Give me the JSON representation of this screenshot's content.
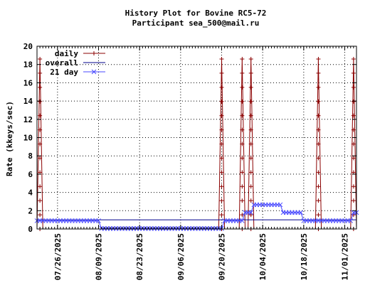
{
  "chart_data": {
    "type": "line",
    "title": "History Plot for Bovine RC5-72",
    "subtitle": "Participant sea_500@mail.ru",
    "xlabel": "",
    "ylabel": "Rate (kkeys/sec)",
    "ylim": [
      0,
      20
    ],
    "yticks": [
      0,
      2,
      4,
      6,
      8,
      10,
      12,
      14,
      16,
      18,
      20
    ],
    "xlim": [
      "2025-07-19",
      "2025-11-05"
    ],
    "xticks": [
      "07/26/2025",
      "08/09/2025",
      "08/23/2025",
      "09/06/2025",
      "09/20/2025",
      "10/04/2025",
      "10/18/2025",
      "11/01/2025"
    ],
    "grid": true,
    "legend_position": "top-left",
    "series": [
      {
        "name": "daily",
        "color": "#8b0000",
        "marker": "plus",
        "x": [
          "2025-07-19",
          "2025-07-20",
          "2025-07-21",
          "2025-07-22",
          "2025-09-19",
          "2025-09-20",
          "2025-09-21",
          "2025-09-26",
          "2025-09-27",
          "2025-09-28",
          "2025-09-29",
          "2025-09-30",
          "2025-10-01",
          "2025-10-22",
          "2025-10-23",
          "2025-10-24",
          "2025-11-03",
          "2025-11-04",
          "2025-11-05"
        ],
        "values": [
          0,
          18.6,
          0,
          0,
          0,
          18.6,
          0,
          0,
          18.6,
          0,
          0,
          18.6,
          0,
          0,
          18.6,
          0,
          0,
          18.6,
          0
        ]
      },
      {
        "name": "overall",
        "color": "#00008b",
        "marker": "none",
        "x": [
          "2025-07-19",
          "2025-11-05"
        ],
        "values": [
          1.0,
          1.0
        ]
      },
      {
        "name": "21 day",
        "color": "#4a4aff",
        "marker": "cross",
        "x": [
          "2025-07-19",
          "2025-08-09",
          "2025-08-10",
          "2025-09-20",
          "2025-09-21",
          "2025-09-27",
          "2025-09-28",
          "2025-09-30",
          "2025-10-01",
          "2025-10-10",
          "2025-10-11",
          "2025-10-17",
          "2025-10-18",
          "2025-11-03",
          "2025-11-04",
          "2025-11-05"
        ],
        "values": [
          0.9,
          0.9,
          0.05,
          0.05,
          0.9,
          0.9,
          1.8,
          1.8,
          2.65,
          2.65,
          1.8,
          1.8,
          0.9,
          0.9,
          1.8,
          1.8
        ]
      }
    ]
  }
}
